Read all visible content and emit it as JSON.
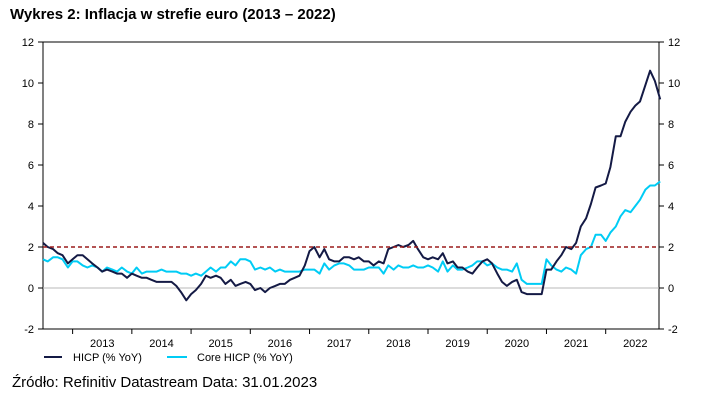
{
  "title": "Wykres 2: Inflacja w strefie euro (2013 – 2022)",
  "source": "Źródło: Refinitiv Datastream Data: 31.01.2023",
  "chart_data": {
    "type": "line",
    "ylim": [
      -2,
      12
    ],
    "xlim": [
      2012.5,
      2022.9
    ],
    "yticks": [
      "-2",
      "0",
      "2",
      "4",
      "6",
      "8",
      "10",
      "12"
    ],
    "yticks_right": [
      "-2",
      "0",
      "2",
      "4",
      "6",
      "8",
      "10",
      "12"
    ],
    "xticks": [
      "2013",
      "2014",
      "2015",
      "2016",
      "2017",
      "2018",
      "2019",
      "2020",
      "2021",
      "2022"
    ],
    "reference_line": {
      "value": 2,
      "color": "#9b1b1b",
      "style": "dashed"
    },
    "zero_line": true,
    "grid": false,
    "legend_position": "bottom-left",
    "series": [
      {
        "name": "HICP (% YoY)",
        "color": "#141a45",
        "x": [
          2012.5,
          2012.58,
          2012.67,
          2012.75,
          2012.83,
          2012.92,
          2013.0,
          2013.08,
          2013.17,
          2013.25,
          2013.33,
          2013.42,
          2013.5,
          2013.58,
          2013.67,
          2013.75,
          2013.83,
          2013.92,
          2014.0,
          2014.08,
          2014.17,
          2014.25,
          2014.33,
          2014.42,
          2014.5,
          2014.58,
          2014.67,
          2014.75,
          2014.83,
          2014.92,
          2015.0,
          2015.08,
          2015.17,
          2015.25,
          2015.33,
          2015.42,
          2015.5,
          2015.58,
          2015.67,
          2015.75,
          2015.83,
          2015.92,
          2016.0,
          2016.08,
          2016.17,
          2016.25,
          2016.33,
          2016.42,
          2016.5,
          2016.58,
          2016.67,
          2016.75,
          2016.83,
          2016.92,
          2017.0,
          2017.08,
          2017.17,
          2017.25,
          2017.33,
          2017.42,
          2017.5,
          2017.58,
          2017.67,
          2017.75,
          2017.83,
          2017.92,
          2018.0,
          2018.08,
          2018.17,
          2018.25,
          2018.33,
          2018.42,
          2018.5,
          2018.58,
          2018.67,
          2018.75,
          2018.83,
          2018.92,
          2019.0,
          2019.08,
          2019.17,
          2019.25,
          2019.33,
          2019.42,
          2019.5,
          2019.58,
          2019.67,
          2019.75,
          2019.83,
          2019.92,
          2020.0,
          2020.08,
          2020.17,
          2020.25,
          2020.33,
          2020.42,
          2020.5,
          2020.58,
          2020.67,
          2020.75,
          2020.83,
          2020.92,
          2021.0,
          2021.08,
          2021.17,
          2021.25,
          2021.33,
          2021.42,
          2021.5,
          2021.58,
          2021.67,
          2021.75,
          2021.83,
          2021.92,
          2022.0,
          2022.08,
          2022.17,
          2022.25,
          2022.33,
          2022.42,
          2022.5,
          2022.58,
          2022.67,
          2022.75,
          2022.83,
          2022.92
        ],
        "values": [
          2.2,
          2.0,
          1.9,
          1.7,
          1.6,
          1.2,
          1.4,
          1.6,
          1.6,
          1.4,
          1.2,
          1.0,
          0.8,
          0.9,
          0.8,
          0.7,
          0.7,
          0.5,
          0.7,
          0.6,
          0.5,
          0.5,
          0.4,
          0.3,
          0.3,
          0.3,
          0.3,
          0.1,
          -0.2,
          -0.6,
          -0.3,
          -0.1,
          0.2,
          0.6,
          0.5,
          0.6,
          0.5,
          0.2,
          0.4,
          0.1,
          0.2,
          0.3,
          0.2,
          -0.1,
          0.0,
          -0.2,
          0.0,
          0.1,
          0.2,
          0.2,
          0.4,
          0.5,
          0.6,
          1.1,
          1.8,
          2.0,
          1.5,
          1.9,
          1.4,
          1.3,
          1.3,
          1.5,
          1.5,
          1.4,
          1.5,
          1.3,
          1.3,
          1.1,
          1.3,
          1.2,
          1.9,
          2.0,
          2.1,
          2.0,
          2.1,
          2.3,
          1.9,
          1.5,
          1.4,
          1.5,
          1.4,
          1.7,
          1.2,
          1.3,
          1.0,
          1.0,
          0.8,
          0.7,
          1.0,
          1.3,
          1.4,
          1.2,
          0.7,
          0.3,
          0.1,
          0.3,
          0.4,
          -0.2,
          -0.3,
          -0.3,
          -0.3,
          -0.3,
          0.9,
          0.9,
          1.3,
          1.6,
          2.0,
          1.9,
          2.2,
          3.0,
          3.4,
          4.1,
          4.9,
          5.0,
          5.1,
          5.9,
          7.4,
          7.4,
          8.1,
          8.6,
          8.9,
          9.1,
          9.9,
          10.6,
          10.1,
          9.2
        ]
      },
      {
        "name": "Core HICP (% YoY)",
        "color": "#00ccf5",
        "x": [
          2012.5,
          2012.58,
          2012.67,
          2012.75,
          2012.83,
          2012.92,
          2013.0,
          2013.08,
          2013.17,
          2013.25,
          2013.33,
          2013.42,
          2013.5,
          2013.58,
          2013.67,
          2013.75,
          2013.83,
          2013.92,
          2014.0,
          2014.08,
          2014.17,
          2014.25,
          2014.33,
          2014.42,
          2014.5,
          2014.58,
          2014.67,
          2014.75,
          2014.83,
          2014.92,
          2015.0,
          2015.08,
          2015.17,
          2015.25,
          2015.33,
          2015.42,
          2015.5,
          2015.58,
          2015.67,
          2015.75,
          2015.83,
          2015.92,
          2016.0,
          2016.08,
          2016.17,
          2016.25,
          2016.33,
          2016.42,
          2016.5,
          2016.58,
          2016.67,
          2016.75,
          2016.83,
          2016.92,
          2017.0,
          2017.08,
          2017.17,
          2017.25,
          2017.33,
          2017.42,
          2017.5,
          2017.58,
          2017.67,
          2017.75,
          2017.83,
          2017.92,
          2018.0,
          2018.08,
          2018.17,
          2018.25,
          2018.33,
          2018.42,
          2018.5,
          2018.58,
          2018.67,
          2018.75,
          2018.83,
          2018.92,
          2019.0,
          2019.08,
          2019.17,
          2019.25,
          2019.33,
          2019.42,
          2019.5,
          2019.58,
          2019.67,
          2019.75,
          2019.83,
          2019.92,
          2020.0,
          2020.08,
          2020.17,
          2020.25,
          2020.33,
          2020.42,
          2020.5,
          2020.58,
          2020.67,
          2020.75,
          2020.83,
          2020.92,
          2021.0,
          2021.08,
          2021.17,
          2021.25,
          2021.33,
          2021.42,
          2021.5,
          2021.58,
          2021.67,
          2021.75,
          2021.83,
          2021.92,
          2022.0,
          2022.08,
          2022.17,
          2022.25,
          2022.33,
          2022.42,
          2022.5,
          2022.58,
          2022.67,
          2022.75,
          2022.83,
          2022.92
        ],
        "values": [
          1.4,
          1.3,
          1.5,
          1.5,
          1.4,
          1.0,
          1.3,
          1.3,
          1.1,
          1.0,
          1.1,
          1.0,
          0.8,
          1.0,
          0.9,
          0.8,
          1.0,
          0.8,
          0.7,
          1.0,
          0.7,
          0.8,
          0.8,
          0.8,
          0.9,
          0.8,
          0.8,
          0.8,
          0.7,
          0.7,
          0.6,
          0.7,
          0.6,
          0.8,
          1.0,
          0.8,
          1.0,
          1.0,
          1.3,
          1.1,
          1.4,
          1.4,
          1.3,
          0.9,
          1.0,
          0.9,
          1.0,
          0.8,
          0.9,
          0.8,
          0.8,
          0.8,
          0.8,
          0.9,
          0.9,
          0.9,
          0.7,
          1.2,
          0.9,
          1.1,
          1.2,
          1.2,
          1.1,
          0.9,
          0.9,
          0.9,
          1.0,
          1.0,
          1.0,
          0.7,
          1.1,
          0.9,
          1.1,
          1.0,
          1.0,
          1.1,
          1.0,
          1.0,
          1.1,
          1.0,
          0.8,
          1.3,
          0.8,
          1.1,
          0.9,
          0.9,
          1.0,
          1.1,
          1.3,
          1.3,
          1.1,
          1.2,
          1.0,
          0.9,
          0.9,
          0.8,
          1.2,
          0.4,
          0.2,
          0.2,
          0.2,
          0.2,
          1.4,
          1.1,
          0.9,
          0.8,
          1.0,
          0.9,
          0.7,
          1.6,
          1.9,
          2.0,
          2.6,
          2.6,
          2.3,
          2.7,
          3.0,
          3.5,
          3.8,
          3.7,
          4.0,
          4.3,
          4.8,
          5.0,
          5.0,
          5.2
        ]
      }
    ]
  }
}
